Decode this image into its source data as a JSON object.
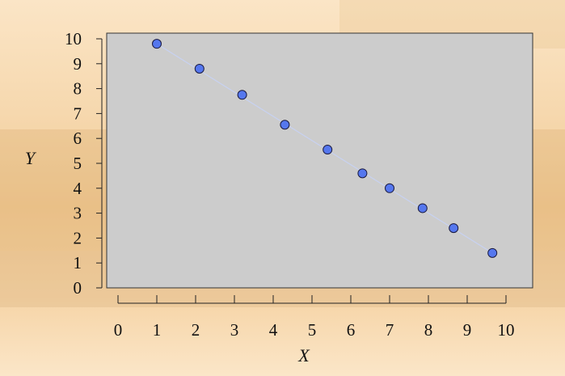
{
  "chart_data": {
    "type": "scatter",
    "title": "",
    "xlabel": "X",
    "ylabel": "Y",
    "xlim": [
      0,
      10
    ],
    "ylim": [
      0,
      10
    ],
    "xticks": [
      "0",
      "1",
      "2",
      "3",
      "4",
      "5",
      "6",
      "7",
      "8",
      "9",
      "10"
    ],
    "yticks": [
      "0",
      "1",
      "2",
      "3",
      "4",
      "5",
      "6",
      "7",
      "8",
      "9",
      "10"
    ],
    "grid": false,
    "trend_line": true,
    "colors": {
      "point_fill": "#5577ee",
      "point_stroke": "#1a1a40",
      "trend_line": "#c8d2f2",
      "plot_background": "#cccccc",
      "plot_border": "#333333"
    },
    "series": [
      {
        "x": [
          1.0,
          2.1,
          3.2,
          4.3,
          5.4,
          6.3,
          7.0,
          7.85,
          8.65,
          9.65
        ],
        "y": [
          9.8,
          8.8,
          7.75,
          6.55,
          5.55,
          4.6,
          4.0,
          3.2,
          2.4,
          1.4
        ]
      }
    ]
  }
}
